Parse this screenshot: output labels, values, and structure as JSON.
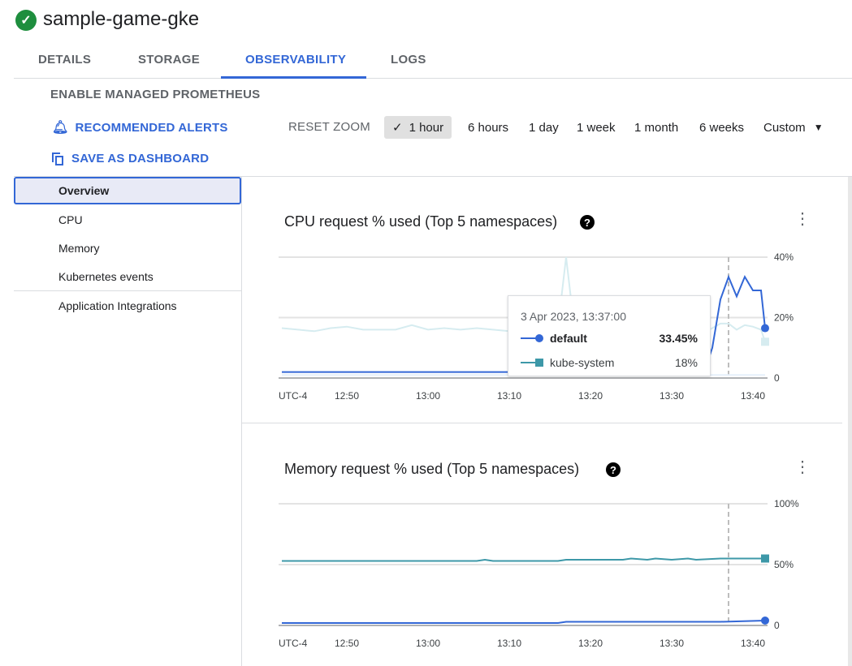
{
  "header": {
    "title": "sample-game-gke",
    "status": "healthy"
  },
  "tabs": [
    {
      "label": "DETAILS"
    },
    {
      "label": "STORAGE"
    },
    {
      "label": "OBSERVABILITY",
      "active": true
    },
    {
      "label": "LOGS"
    }
  ],
  "actions": {
    "prometheus": "ENABLE MANAGED PROMETHEUS",
    "alerts": "RECOMMENDED ALERTS",
    "dashboard": "SAVE AS DASHBOARD",
    "reset_zoom": "RESET ZOOM"
  },
  "time_ranges": [
    {
      "label": "1 hour",
      "selected": true
    },
    {
      "label": "6 hours"
    },
    {
      "label": "1 day"
    },
    {
      "label": "1 week"
    },
    {
      "label": "1 month"
    },
    {
      "label": "6 weeks"
    },
    {
      "label": "Custom"
    }
  ],
  "sidebar": {
    "items": [
      {
        "label": "Overview",
        "selected": true
      },
      {
        "label": "CPU"
      },
      {
        "label": "Memory"
      },
      {
        "label": "Kubernetes events"
      },
      {
        "label": "Application Integrations"
      }
    ]
  },
  "colors": {
    "accent": "#3367d6",
    "default": "#3367d6",
    "kube_system": "#3d98a8",
    "faint": "#d6ecf0"
  },
  "tooltip": {
    "time": "3 Apr 2023, 13:37:00",
    "rows": [
      {
        "name": "default",
        "value": "33.45%"
      },
      {
        "name": "kube-system",
        "value": "18%"
      }
    ]
  },
  "chart_data": [
    {
      "type": "line",
      "title": "CPU request % used (Top 5 namespaces)",
      "ylim": [
        0,
        40
      ],
      "yticks": [
        "0",
        "20%",
        "40%"
      ],
      "xticks": [
        "UTC-4",
        "12:50",
        "13:00",
        "13:10",
        "13:20",
        "13:30",
        "13:40"
      ],
      "cursor": "13:37",
      "x": [
        "12:42",
        "12:44",
        "12:46",
        "12:48",
        "12:50",
        "12:52",
        "12:54",
        "12:56",
        "12:58",
        "13:00",
        "13:02",
        "13:04",
        "13:06",
        "13:08",
        "13:10",
        "13:12",
        "13:14",
        "13:16",
        "13:17",
        "13:18",
        "13:20",
        "13:22",
        "13:24",
        "13:26",
        "13:28",
        "13:30",
        "13:32",
        "13:34",
        "13:35",
        "13:36",
        "13:37",
        "13:38",
        "13:39",
        "13:40",
        "13:41",
        "13:41:30"
      ],
      "series": [
        {
          "name": "default",
          "values": [
            2,
            2,
            2,
            2,
            2,
            2,
            2,
            2,
            2,
            2,
            2,
            2,
            2,
            2,
            2,
            2,
            2,
            2,
            2,
            2,
            2,
            2,
            2,
            2,
            2,
            2,
            2,
            2,
            10,
            26,
            33.45,
            27,
            33.5,
            29,
            29,
            16.5
          ]
        },
        {
          "name": "kube-system",
          "values": [
            16.5,
            16,
            15.5,
            16.5,
            17,
            16,
            16,
            16,
            17.5,
            16,
            16.5,
            16,
            16.5,
            16,
            15.5,
            16,
            16.5,
            17,
            40,
            17,
            16,
            16.5,
            16,
            16.5,
            16,
            16,
            16.5,
            15,
            16.5,
            18,
            18,
            16,
            17.5,
            17,
            16,
            12
          ]
        },
        {
          "values": [
            1,
            1,
            1,
            1,
            1,
            1,
            1,
            1,
            1,
            1,
            1,
            1,
            1,
            1,
            1,
            1.5,
            2,
            2.5,
            4,
            1,
            1,
            1,
            1,
            1,
            1,
            1,
            1,
            1,
            1,
            1,
            1,
            1,
            1,
            1,
            1,
            1
          ]
        }
      ]
    },
    {
      "type": "line",
      "title": "Memory request % used (Top 5 namespaces)",
      "ylim": [
        0,
        100
      ],
      "yticks": [
        "0",
        "50%",
        "100%"
      ],
      "xticks": [
        "UTC-4",
        "12:50",
        "13:00",
        "13:10",
        "13:20",
        "13:30",
        "13:40"
      ],
      "cursor": "13:37",
      "x": [
        "12:42",
        "12:50",
        "13:00",
        "13:06",
        "13:07",
        "13:08",
        "13:16",
        "13:17",
        "13:24",
        "13:25",
        "13:27",
        "13:28",
        "13:30",
        "13:32",
        "13:33",
        "13:36",
        "13:41:30"
      ],
      "series": [
        {
          "name": "kube-system",
          "values": [
            53,
            53,
            53,
            53,
            54,
            53,
            53,
            54,
            54,
            55,
            54,
            55,
            54,
            55,
            54,
            55,
            55
          ]
        },
        {
          "name": "default",
          "values": [
            2,
            2,
            2,
            2,
            2,
            2,
            2,
            3,
            3,
            3,
            3,
            3,
            3,
            3,
            3,
            3,
            4
          ]
        }
      ]
    }
  ]
}
